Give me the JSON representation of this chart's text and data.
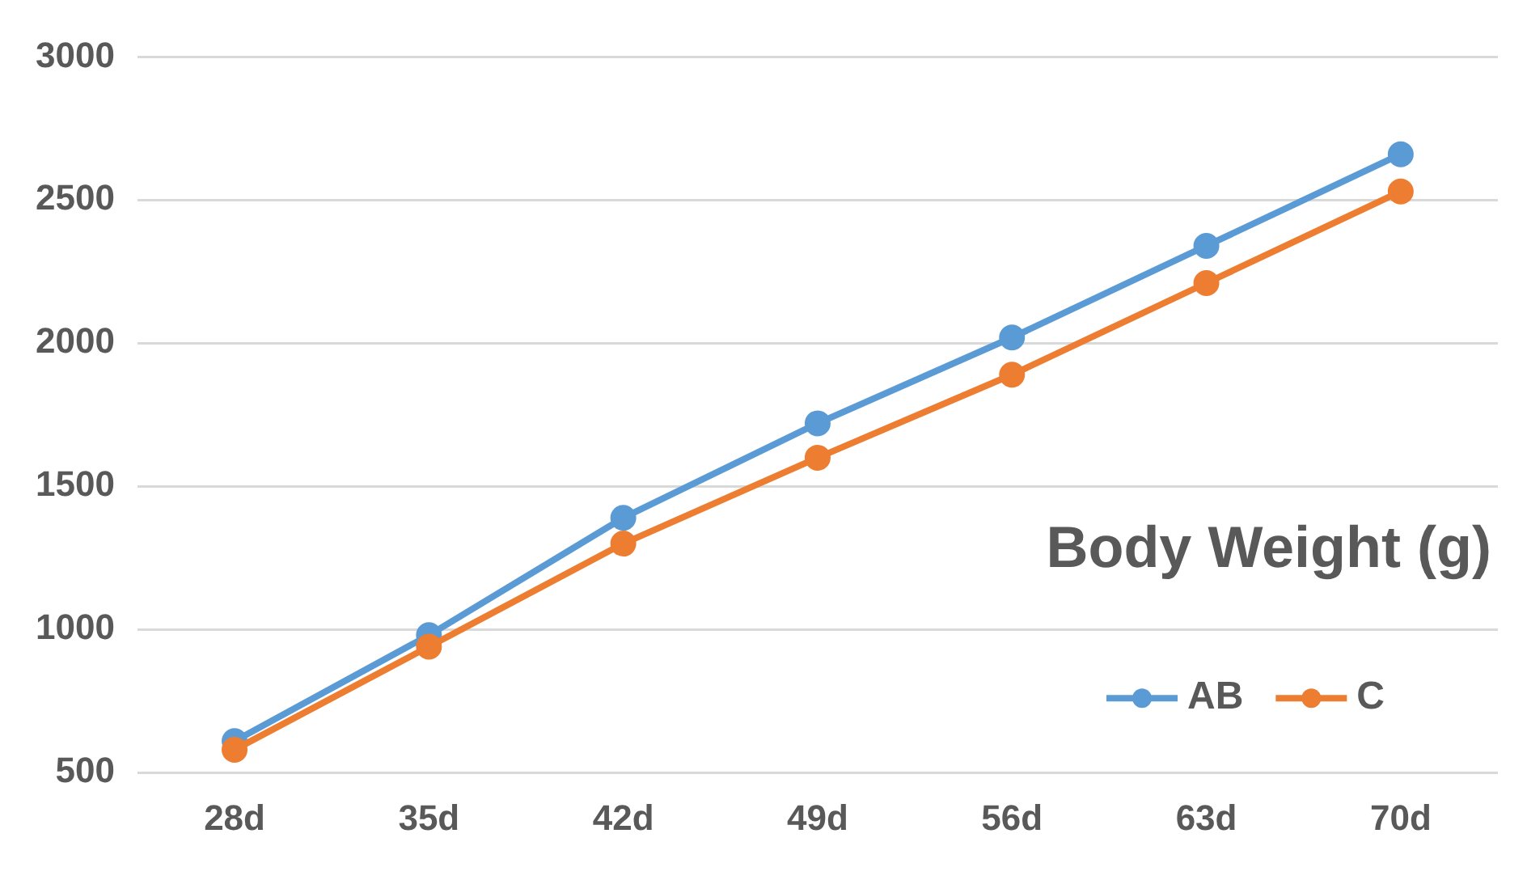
{
  "chart_data": {
    "type": "line",
    "title": "Body Weight (g)",
    "categories": [
      "28d",
      "35d",
      "42d",
      "49d",
      "56d",
      "63d",
      "70d"
    ],
    "series": [
      {
        "name": "AB",
        "color": "#5b9bd5",
        "values": [
          610,
          980,
          1390,
          1720,
          2020,
          2340,
          2660
        ]
      },
      {
        "name": "C",
        "color": "#ed7d31",
        "values": [
          580,
          940,
          1300,
          1600,
          1890,
          2210,
          2530
        ]
      }
    ],
    "ylim": [
      500,
      3000
    ],
    "yticks": [
      500,
      1000,
      1500,
      2000,
      2500,
      3000
    ],
    "grid": "y",
    "legend": "bottom right",
    "marker": "circle",
    "line_style": "solid"
  }
}
